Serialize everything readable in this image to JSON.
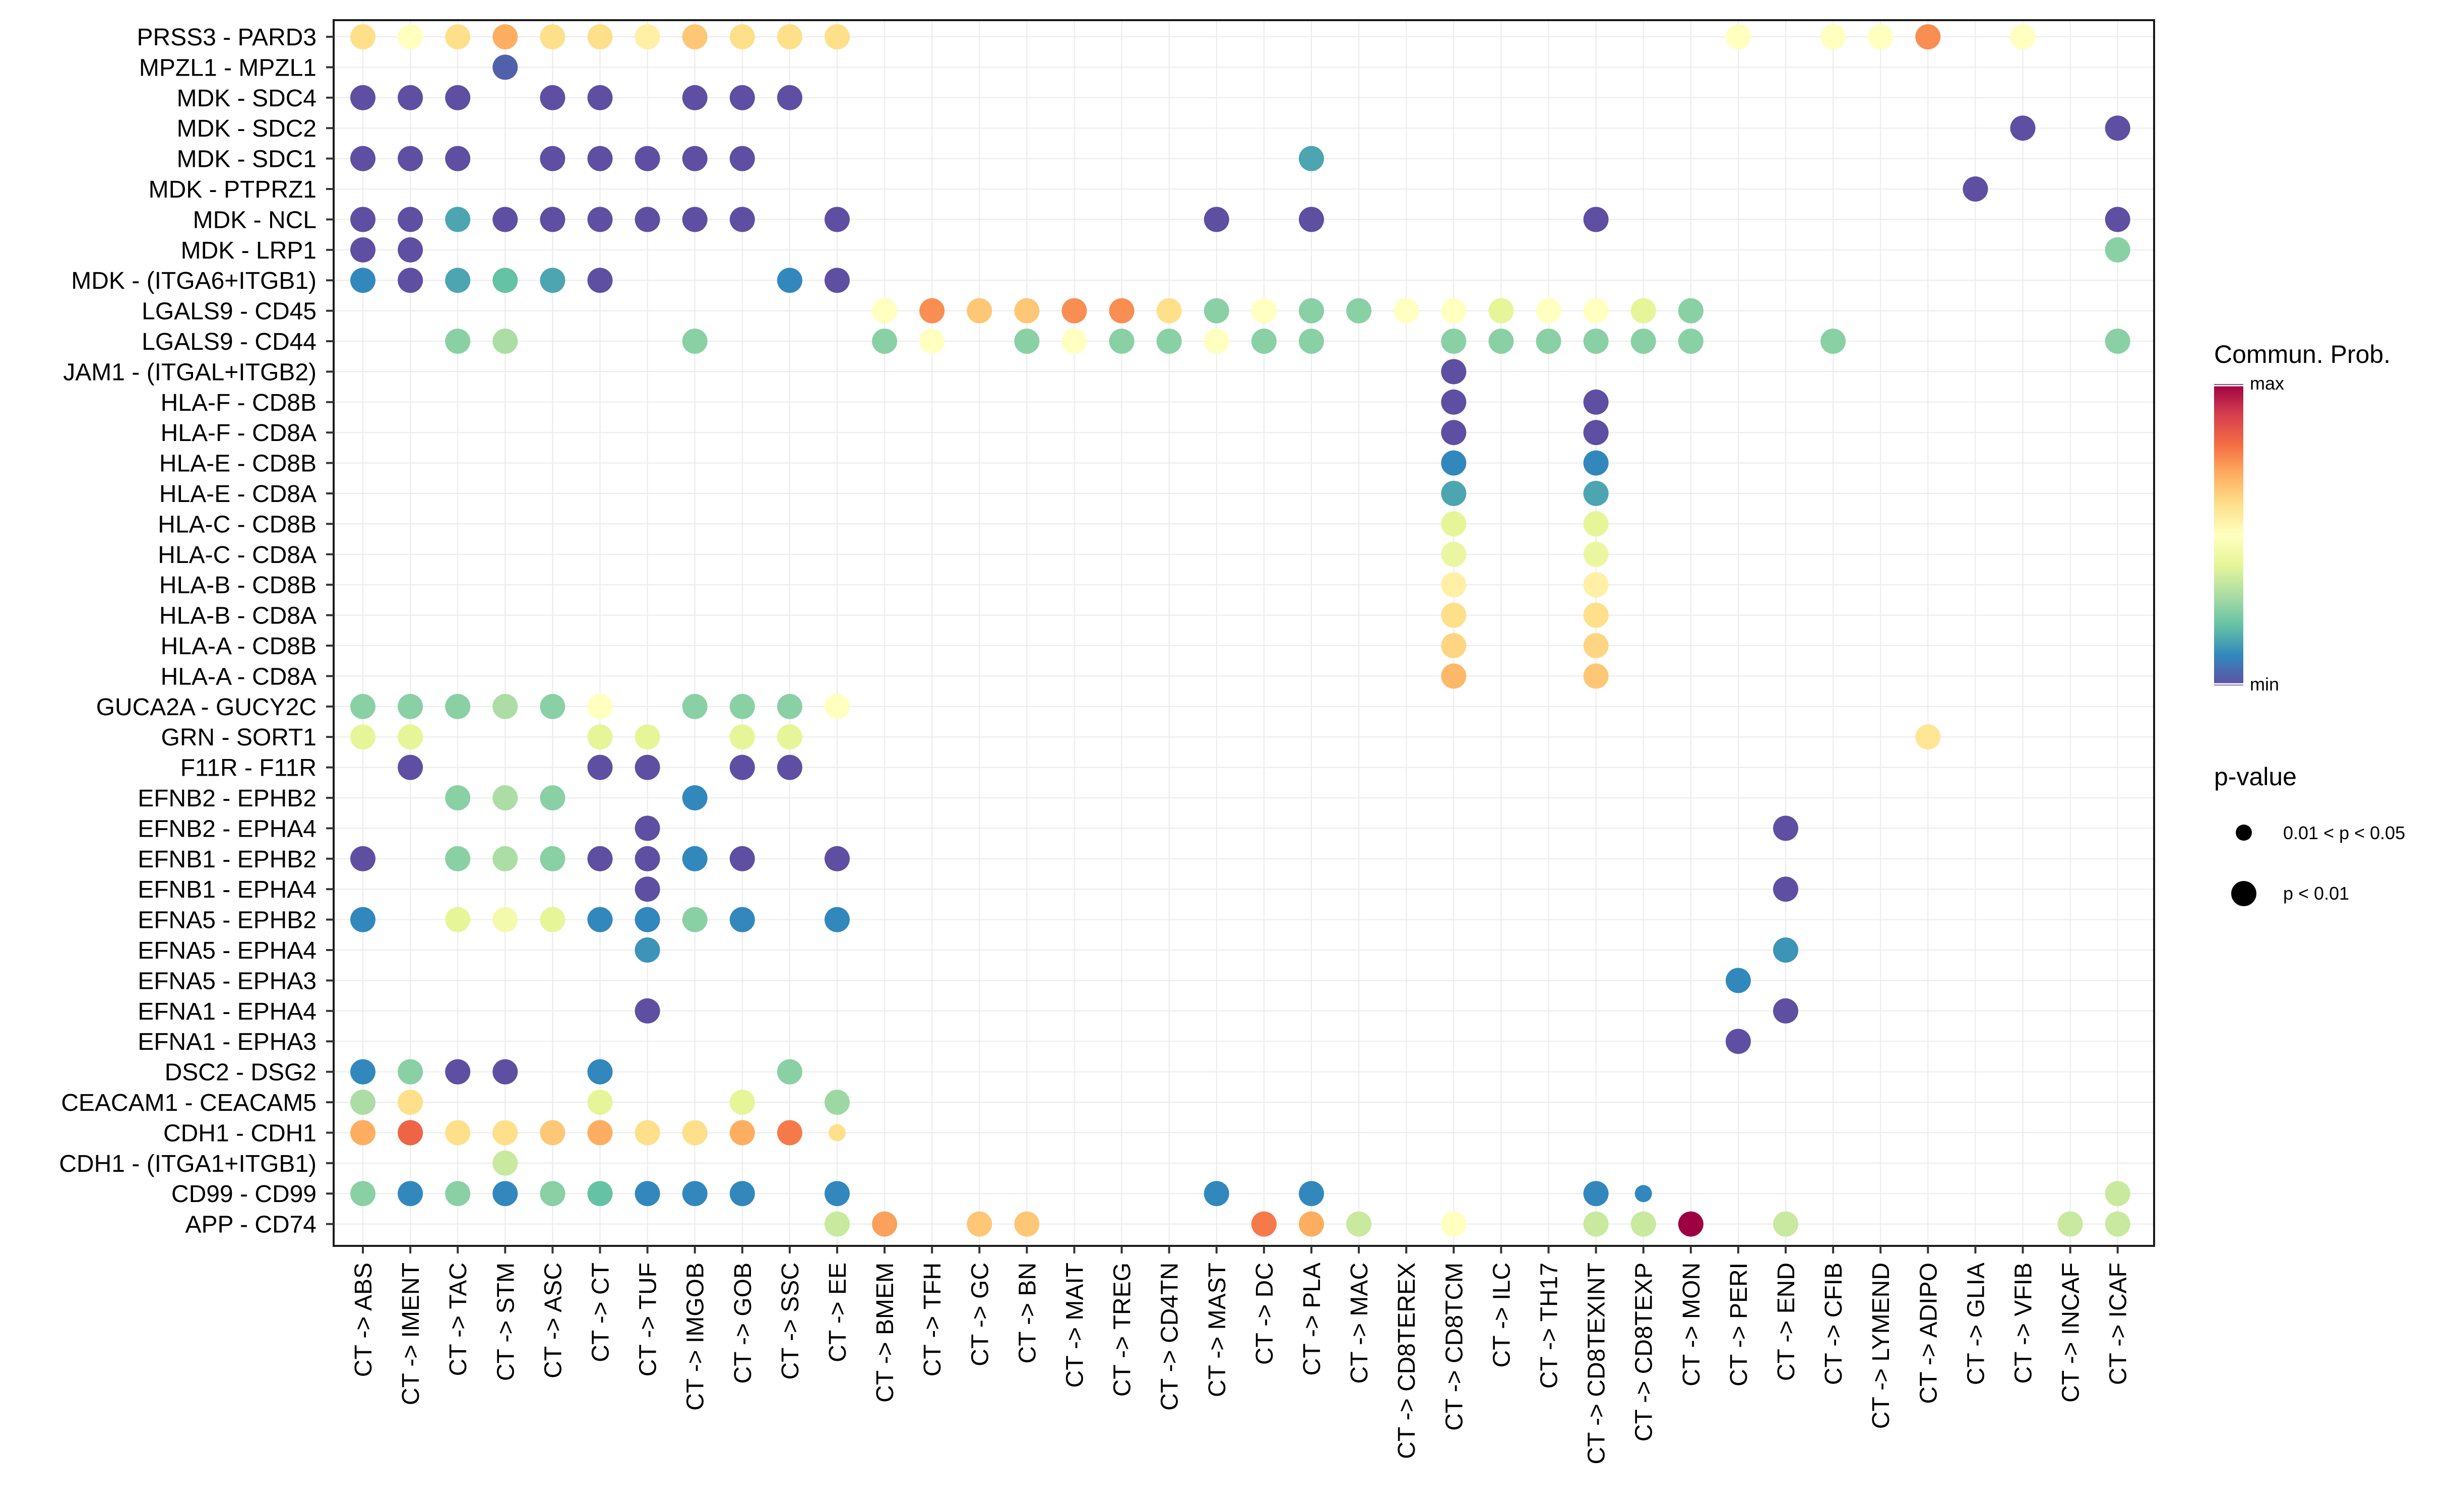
{
  "chart_data": {
    "type": "dot",
    "xlabel": "",
    "ylabel": "",
    "scale_note": "color_level values are on a 0-10 relative scale from min (0) to max (10) communication probability",
    "categories": [
      "CT -> ABS",
      "CT -> IMENT",
      "CT -> TAC",
      "CT -> STM",
      "CT -> ASC",
      "CT -> CT",
      "CT -> TUF",
      "CT -> IMGOB",
      "CT -> GOB",
      "CT -> SSC",
      "CT -> EE",
      "CT -> BMEM",
      "CT -> TFH",
      "CT -> GC",
      "CT -> BN",
      "CT -> MAIT",
      "CT -> TREG",
      "CT -> CD4TN",
      "CT -> MAST",
      "CT -> DC",
      "CT -> PLA",
      "CT -> MAC",
      "CT -> CD8TEREX",
      "CT -> CD8TCM",
      "CT -> ILC",
      "CT -> TH17",
      "CT -> CD8TEXINT",
      "CT -> CD8TEXP",
      "CT -> MON",
      "CT -> PERI",
      "CT -> END",
      "CT -> CFIB",
      "CT -> LYMEND",
      "CT -> ADIPO",
      "CT -> GLIA",
      "CT -> VFIB",
      "CT -> INCAF",
      "CT -> ICAF"
    ],
    "rows": [
      {
        "pair": "PRSS3 - PARD3",
        "points": [
          [
            0,
            6
          ],
          [
            1,
            5
          ],
          [
            2,
            6
          ],
          [
            3,
            7
          ],
          [
            4,
            6
          ],
          [
            5,
            6
          ],
          [
            6,
            5.5
          ],
          [
            7,
            6.5
          ],
          [
            8,
            6
          ],
          [
            9,
            6
          ],
          [
            10,
            6
          ],
          [
            29,
            5
          ],
          [
            31,
            5
          ],
          [
            32,
            5
          ],
          [
            33,
            7.5
          ],
          [
            35,
            5
          ]
        ]
      },
      {
        "pair": "MPZL1 - MPZL1",
        "points": [
          [
            3,
            0.3
          ]
        ]
      },
      {
        "pair": "MDK - SDC4",
        "points": [
          [
            0,
            0
          ],
          [
            1,
            0
          ],
          [
            2,
            0
          ],
          [
            4,
            0
          ],
          [
            5,
            0
          ],
          [
            7,
            0
          ],
          [
            8,
            0
          ],
          [
            9,
            0
          ]
        ]
      },
      {
        "pair": "MDK - SDC2",
        "points": [
          [
            35,
            0
          ],
          [
            37,
            0
          ]
        ]
      },
      {
        "pair": "MDK - SDC1",
        "points": [
          [
            0,
            0
          ],
          [
            1,
            0
          ],
          [
            2,
            0
          ],
          [
            4,
            0
          ],
          [
            5,
            0
          ],
          [
            6,
            0
          ],
          [
            7,
            0
          ],
          [
            8,
            0
          ],
          [
            20,
            1.5
          ]
        ]
      },
      {
        "pair": "MDK - PTPRZ1",
        "points": [
          [
            34,
            0
          ]
        ]
      },
      {
        "pair": "MDK - NCL",
        "points": [
          [
            0,
            0
          ],
          [
            1,
            -0.3
          ],
          [
            2,
            1.5
          ],
          [
            3,
            0
          ],
          [
            4,
            0
          ],
          [
            5,
            0
          ],
          [
            6,
            0
          ],
          [
            7,
            0
          ],
          [
            8,
            0
          ],
          [
            10,
            0
          ],
          [
            18,
            0
          ],
          [
            20,
            0
          ],
          [
            26,
            0
          ],
          [
            37,
            0
          ]
        ]
      },
      {
        "pair": "MDK - LRP1",
        "points": [
          [
            0,
            0
          ],
          [
            1,
            0
          ],
          [
            37,
            2.5
          ]
        ]
      },
      {
        "pair": "MDK - (ITGA6+ITGB1)",
        "points": [
          [
            0,
            1
          ],
          [
            1,
            0
          ],
          [
            2,
            1.5
          ],
          [
            3,
            2
          ],
          [
            4,
            1.5
          ],
          [
            5,
            0
          ],
          [
            9,
            1
          ],
          [
            10,
            0
          ]
        ]
      },
      {
        "pair": "LGALS9 - CD45",
        "points": [
          [
            11,
            5
          ],
          [
            12,
            7.5
          ],
          [
            13,
            6.5
          ],
          [
            14,
            6.5
          ],
          [
            15,
            7.5
          ],
          [
            16,
            7.5
          ],
          [
            17,
            6
          ],
          [
            18,
            2.5
          ],
          [
            19,
            5
          ],
          [
            20,
            2.5
          ],
          [
            21,
            2.5
          ],
          [
            22,
            5
          ],
          [
            23,
            5
          ],
          [
            24,
            4
          ],
          [
            25,
            5
          ],
          [
            26,
            5
          ],
          [
            27,
            4
          ],
          [
            28,
            2.5
          ]
        ]
      },
      {
        "pair": "LGALS9 - CD44",
        "points": [
          [
            2,
            2.5
          ],
          [
            3,
            3
          ],
          [
            7,
            2.5
          ],
          [
            11,
            2.5
          ],
          [
            12,
            5
          ],
          [
            14,
            2.5
          ],
          [
            15,
            5
          ],
          [
            16,
            2.5
          ],
          [
            17,
            2.5
          ],
          [
            18,
            5
          ],
          [
            19,
            2.5
          ],
          [
            20,
            2.5
          ],
          [
            23,
            2.5
          ],
          [
            24,
            2.5
          ],
          [
            25,
            2.5
          ],
          [
            26,
            2.5
          ],
          [
            27,
            2.5
          ],
          [
            28,
            2.5
          ],
          [
            31,
            2.5
          ],
          [
            37,
            2.5
          ]
        ]
      },
      {
        "pair": "JAM1 - (ITGAL+ITGB2)",
        "points": [
          [
            23,
            0
          ]
        ]
      },
      {
        "pair": "HLA-F - CD8B",
        "points": [
          [
            23,
            0
          ],
          [
            26,
            0
          ]
        ]
      },
      {
        "pair": "HLA-F - CD8A",
        "points": [
          [
            23,
            0
          ],
          [
            26,
            0
          ]
        ]
      },
      {
        "pair": "HLA-E - CD8B",
        "points": [
          [
            23,
            1
          ],
          [
            26,
            1
          ]
        ]
      },
      {
        "pair": "HLA-E - CD8A",
        "points": [
          [
            23,
            1.5
          ],
          [
            26,
            1.5
          ]
        ]
      },
      {
        "pair": "HLA-C - CD8B",
        "points": [
          [
            23,
            4
          ],
          [
            26,
            4
          ]
        ]
      },
      {
        "pair": "HLA-C - CD8A",
        "points": [
          [
            23,
            4.2
          ],
          [
            26,
            4.2
          ]
        ]
      },
      {
        "pair": "HLA-B - CD8B",
        "points": [
          [
            23,
            5.5
          ],
          [
            26,
            5.5
          ]
        ]
      },
      {
        "pair": "HLA-B - CD8A",
        "points": [
          [
            23,
            6
          ],
          [
            26,
            6
          ]
        ]
      },
      {
        "pair": "HLA-A - CD8B",
        "points": [
          [
            23,
            6.2
          ],
          [
            26,
            6.2
          ]
        ]
      },
      {
        "pair": "HLA-A - CD8A",
        "points": [
          [
            23,
            6.8
          ],
          [
            26,
            6.5
          ]
        ]
      },
      {
        "pair": "GUCA2A - GUCY2C",
        "points": [
          [
            0,
            2.5
          ],
          [
            1,
            2.5
          ],
          [
            2,
            2.5
          ],
          [
            3,
            3
          ],
          [
            4,
            2.5
          ],
          [
            5,
            5
          ],
          [
            7,
            2.5
          ],
          [
            8,
            2.5
          ],
          [
            9,
            2.5
          ],
          [
            10,
            5
          ]
        ]
      },
      {
        "pair": "GRN - SORT1",
        "points": [
          [
            0,
            4
          ],
          [
            1,
            4
          ],
          [
            5,
            4
          ],
          [
            6,
            4
          ],
          [
            8,
            4
          ],
          [
            9,
            4
          ],
          [
            33,
            5.8
          ]
        ]
      },
      {
        "pair": "F11R - F11R",
        "points": [
          [
            1,
            0
          ],
          [
            5,
            0
          ],
          [
            6,
            0
          ],
          [
            8,
            0
          ],
          [
            9,
            0
          ]
        ]
      },
      {
        "pair": "EFNB2 - EPHB2",
        "points": [
          [
            2,
            2.5
          ],
          [
            3,
            3
          ],
          [
            4,
            2.5
          ],
          [
            7,
            1
          ]
        ]
      },
      {
        "pair": "EFNB2 - EPHA4",
        "points": [
          [
            6,
            0
          ],
          [
            30,
            0
          ]
        ]
      },
      {
        "pair": "EFNB1 - EPHB2",
        "points": [
          [
            0,
            0
          ],
          [
            2,
            2.5
          ],
          [
            3,
            3
          ],
          [
            4,
            2.5
          ],
          [
            5,
            0
          ],
          [
            6,
            0
          ],
          [
            7,
            1
          ],
          [
            8,
            0
          ],
          [
            10,
            0
          ]
        ]
      },
      {
        "pair": "EFNB1 - EPHA4",
        "points": [
          [
            6,
            0
          ],
          [
            30,
            0
          ]
        ]
      },
      {
        "pair": "EFNA5 - EPHB2",
        "points": [
          [
            0,
            1
          ],
          [
            2,
            4
          ],
          [
            3,
            4.5
          ],
          [
            4,
            4
          ],
          [
            5,
            1
          ],
          [
            6,
            1
          ],
          [
            7,
            2.5
          ],
          [
            8,
            1
          ],
          [
            10,
            1
          ]
        ]
      },
      {
        "pair": "EFNA5 - EPHA4",
        "points": [
          [
            6,
            1.2
          ],
          [
            30,
            1.2
          ]
        ]
      },
      {
        "pair": "EFNA5 - EPHA3",
        "points": [
          [
            29,
            1
          ]
        ]
      },
      {
        "pair": "EFNA1 - EPHA4",
        "points": [
          [
            6,
            0
          ],
          [
            30,
            0
          ]
        ]
      },
      {
        "pair": "EFNA1 - EPHA3",
        "points": [
          [
            29,
            0
          ]
        ]
      },
      {
        "pair": "DSC2 - DSG2",
        "points": [
          [
            0,
            1
          ],
          [
            1,
            2.5
          ],
          [
            2,
            0
          ],
          [
            3,
            0
          ],
          [
            5,
            1
          ],
          [
            9,
            2.5
          ]
        ]
      },
      {
        "pair": "CEACAM1 - CEACAM5",
        "points": [
          [
            0,
            3
          ],
          [
            1,
            6
          ],
          [
            5,
            4
          ],
          [
            8,
            4
          ],
          [
            10,
            2.8
          ]
        ]
      },
      {
        "pair": "CDH1 - CDH1",
        "points": [
          [
            0,
            7
          ],
          [
            1,
            8.2
          ],
          [
            2,
            6
          ],
          [
            3,
            6
          ],
          [
            4,
            6.5
          ],
          [
            5,
            7
          ],
          [
            6,
            6
          ],
          [
            7,
            6
          ],
          [
            8,
            7
          ],
          [
            9,
            7.8
          ],
          [
            10,
            6,
            "small"
          ]
        ]
      },
      {
        "pair": "CDH1 - (ITGA1+ITGB1)",
        "points": [
          [
            3,
            3.5
          ]
        ]
      },
      {
        "pair": "CD99 - CD99",
        "points": [
          [
            0,
            2.5
          ],
          [
            1,
            1
          ],
          [
            2,
            2.5
          ],
          [
            3,
            1
          ],
          [
            4,
            2.5
          ],
          [
            5,
            2
          ],
          [
            6,
            1
          ],
          [
            7,
            1
          ],
          [
            8,
            1
          ],
          [
            10,
            1
          ],
          [
            18,
            1
          ],
          [
            20,
            1
          ],
          [
            26,
            1
          ],
          [
            27,
            1,
            "small"
          ],
          [
            37,
            3.5
          ]
        ]
      },
      {
        "pair": "APP - CD74",
        "points": [
          [
            10,
            3.5
          ],
          [
            11,
            7.2
          ],
          [
            13,
            6.5
          ],
          [
            14,
            6.5
          ],
          [
            19,
            7.8
          ],
          [
            20,
            7
          ],
          [
            21,
            3.5
          ],
          [
            23,
            5
          ],
          [
            26,
            3.5
          ],
          [
            27,
            3.5
          ],
          [
            28,
            10
          ],
          [
            30,
            3.5
          ],
          [
            36,
            3.5
          ],
          [
            37,
            3.5
          ]
        ]
      }
    ],
    "legend_color": {
      "title": "Commun. Prob.",
      "max_label": "max",
      "min_label": "min"
    },
    "legend_size": {
      "title": "p-value",
      "entries": [
        {
          "label": "0.01 < p < 0.05",
          "size": "small"
        },
        {
          "label": "p < 0.01",
          "size": "large"
        }
      ]
    },
    "grid": true
  }
}
